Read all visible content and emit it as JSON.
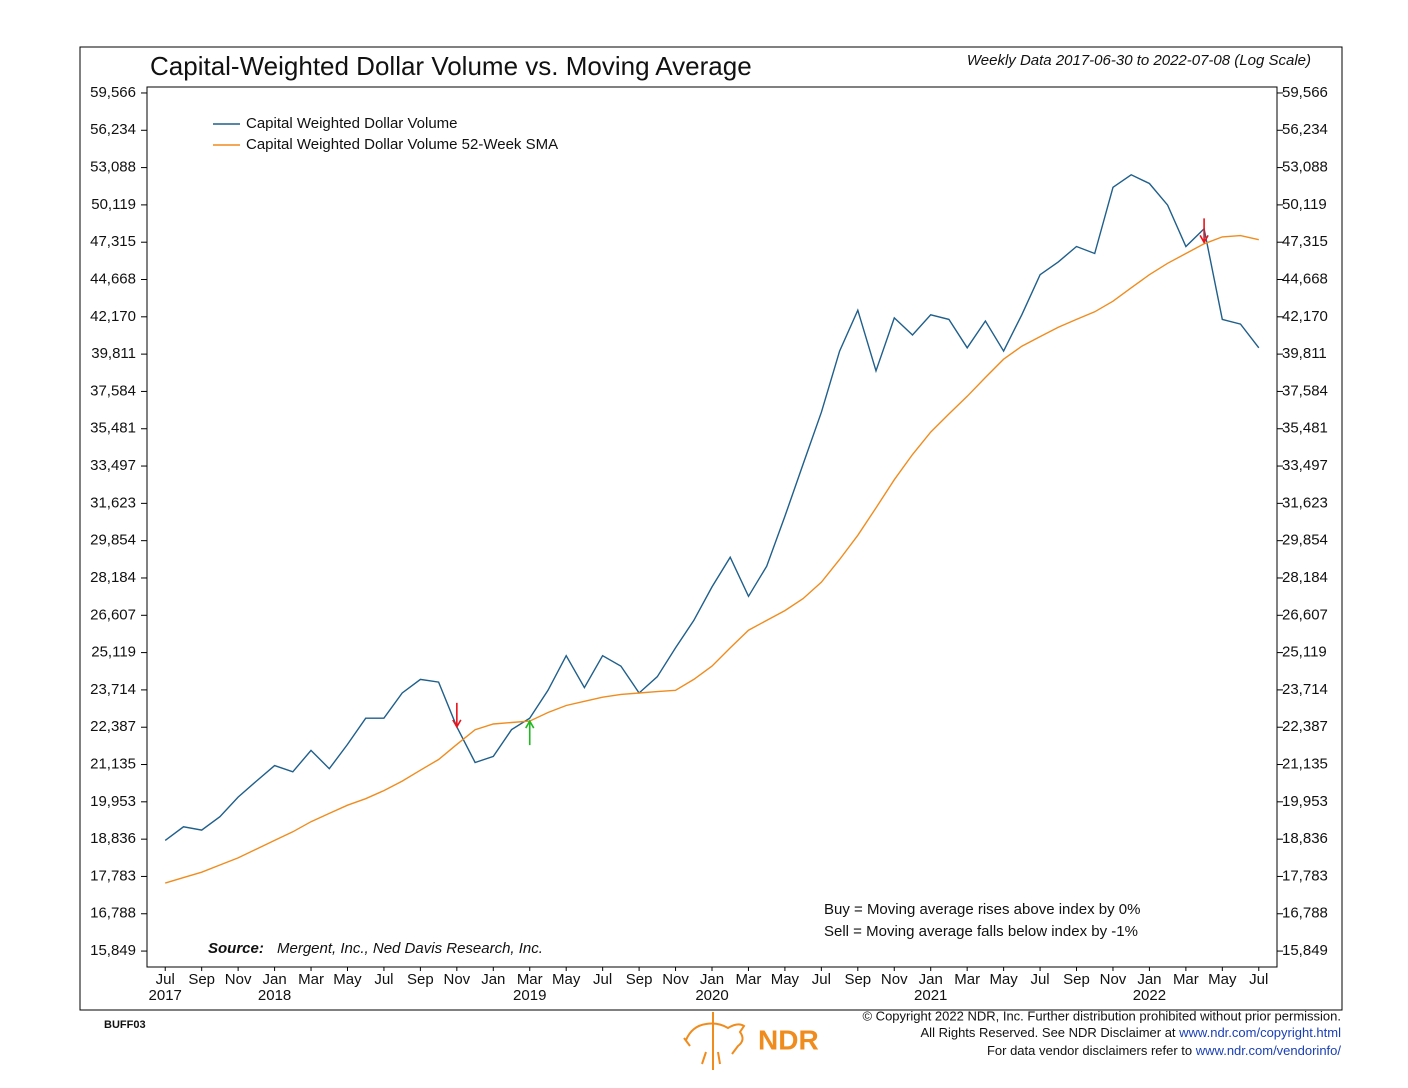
{
  "chart_data": {
    "type": "line",
    "title": "Capital-Weighted Dollar Volume vs. Moving Average",
    "subtitle": "Weekly Data 2017-06-30 to 2022-07-08 (Log Scale)",
    "log_scale": true,
    "x": [
      "2017-07",
      "2017-08",
      "2017-09",
      "2017-10",
      "2017-11",
      "2017-12",
      "2018-01",
      "2018-02",
      "2018-03",
      "2018-04",
      "2018-05",
      "2018-06",
      "2018-07",
      "2018-08",
      "2018-09",
      "2018-10",
      "2018-11",
      "2018-12",
      "2019-01",
      "2019-02",
      "2019-03",
      "2019-04",
      "2019-05",
      "2019-06",
      "2019-07",
      "2019-08",
      "2019-09",
      "2019-10",
      "2019-11",
      "2019-12",
      "2020-01",
      "2020-02",
      "2020-03",
      "2020-04",
      "2020-05",
      "2020-06",
      "2020-07",
      "2020-08",
      "2020-09",
      "2020-10",
      "2020-11",
      "2020-12",
      "2021-01",
      "2021-02",
      "2021-03",
      "2021-04",
      "2021-05",
      "2021-06",
      "2021-07",
      "2021-08",
      "2021-09",
      "2021-10",
      "2021-11",
      "2021-12",
      "2022-01",
      "2022-02",
      "2022-03",
      "2022-04",
      "2022-05",
      "2022-06",
      "2022-07"
    ],
    "series": [
      {
        "name": "Capital Weighted Dollar Volume",
        "color": "#1f5f8b",
        "values": [
          18800,
          19200,
          19100,
          19500,
          20100,
          20600,
          21100,
          20900,
          21600,
          21000,
          21800,
          22700,
          22700,
          23600,
          24100,
          24000,
          22400,
          21200,
          21400,
          22300,
          22700,
          23700,
          25000,
          23800,
          25000,
          24600,
          23600,
          24200,
          25300,
          26400,
          27800,
          29100,
          27400,
          28700,
          31000,
          33600,
          36400,
          40000,
          42600,
          38800,
          42100,
          41000,
          42300,
          42000,
          40200,
          41900,
          40000,
          42300,
          45000,
          45900,
          47000,
          46500,
          51500,
          52500,
          51800,
          50100,
          47000,
          48300,
          42000,
          41700,
          40200
        ]
      },
      {
        "name": "Capital Weighted Dollar Volume 52-Week SMA",
        "color": "#f08c1e",
        "values": [
          17600,
          17750,
          17900,
          18100,
          18300,
          18550,
          18800,
          19050,
          19350,
          19600,
          19850,
          20050,
          20300,
          20600,
          20950,
          21300,
          21800,
          22300,
          22500,
          22550,
          22600,
          22900,
          23150,
          23300,
          23450,
          23550,
          23600,
          23650,
          23700,
          24100,
          24600,
          25300,
          26000,
          26400,
          26800,
          27300,
          28000,
          29000,
          30100,
          31400,
          32800,
          34100,
          35300,
          36300,
          37300,
          38400,
          39500,
          40300,
          40900,
          41500,
          42000,
          42500,
          43200,
          44100,
          45000,
          45800,
          46500,
          47200,
          47700,
          47800,
          47500
        ]
      }
    ],
    "signals": [
      {
        "x": "2018-11",
        "value": 22400,
        "color": "#e8141c",
        "direction": "down"
      },
      {
        "x": "2019-03",
        "value": 22600,
        "color": "#22b822",
        "direction": "up"
      },
      {
        "x": "2022-04",
        "value": 47300,
        "color": "#e8141c",
        "direction": "down"
      }
    ],
    "xlim": [
      "2017-06",
      "2022-08"
    ],
    "xticks": [
      {
        "value": "2017-07",
        "label": "Jul"
      },
      {
        "value": "2017-09",
        "label": "Sep"
      },
      {
        "value": "2017-11",
        "label": "Nov"
      },
      {
        "value": "2018-01",
        "label": "Jan"
      },
      {
        "value": "2018-03",
        "label": "Mar"
      },
      {
        "value": "2018-05",
        "label": "May"
      },
      {
        "value": "2018-07",
        "label": "Jul"
      },
      {
        "value": "2018-09",
        "label": "Sep"
      },
      {
        "value": "2018-11",
        "label": "Nov"
      },
      {
        "value": "2019-01",
        "label": "Jan"
      },
      {
        "value": "2019-03",
        "label": "Mar"
      },
      {
        "value": "2019-05",
        "label": "May"
      },
      {
        "value": "2019-07",
        "label": "Jul"
      },
      {
        "value": "2019-09",
        "label": "Sep"
      },
      {
        "value": "2019-11",
        "label": "Nov"
      },
      {
        "value": "2020-01",
        "label": "Jan"
      },
      {
        "value": "2020-03",
        "label": "Mar"
      },
      {
        "value": "2020-05",
        "label": "May"
      },
      {
        "value": "2020-07",
        "label": "Jul"
      },
      {
        "value": "2020-09",
        "label": "Sep"
      },
      {
        "value": "2020-11",
        "label": "Nov"
      },
      {
        "value": "2021-01",
        "label": "Jan"
      },
      {
        "value": "2021-03",
        "label": "Mar"
      },
      {
        "value": "2021-05",
        "label": "May"
      },
      {
        "value": "2021-07",
        "label": "Jul"
      },
      {
        "value": "2021-09",
        "label": "Sep"
      },
      {
        "value": "2021-11",
        "label": "Nov"
      },
      {
        "value": "2022-01",
        "label": "Jan"
      },
      {
        "value": "2022-03",
        "label": "Mar"
      },
      {
        "value": "2022-05",
        "label": "May"
      },
      {
        "value": "2022-07",
        "label": "Jul"
      }
    ],
    "year_labels": [
      {
        "value": "2017-07",
        "label": "2017"
      },
      {
        "value": "2018-01",
        "label": "2018"
      },
      {
        "value": "2019-03",
        "label": "2019"
      },
      {
        "value": "2020-01",
        "label": "2020"
      },
      {
        "value": "2021-01",
        "label": "2021"
      },
      {
        "value": "2022-01",
        "label": "2022"
      }
    ],
    "ylim": [
      15464,
      60117
    ],
    "yticks": [
      {
        "value": 15849,
        "label": "15,849"
      },
      {
        "value": 16788,
        "label": "16,788"
      },
      {
        "value": 17783,
        "label": "17,783"
      },
      {
        "value": 18836,
        "label": "18,836"
      },
      {
        "value": 19953,
        "label": "19,953"
      },
      {
        "value": 21135,
        "label": "21,135"
      },
      {
        "value": 22387,
        "label": "22,387"
      },
      {
        "value": 23714,
        "label": "23,714"
      },
      {
        "value": 25119,
        "label": "25,119"
      },
      {
        "value": 26607,
        "label": "26,607"
      },
      {
        "value": 28184,
        "label": "28,184"
      },
      {
        "value": 29854,
        "label": "29,854"
      },
      {
        "value": 31623,
        "label": "31,623"
      },
      {
        "value": 33497,
        "label": "33,497"
      },
      {
        "value": 35481,
        "label": "35,481"
      },
      {
        "value": 37584,
        "label": "37,584"
      },
      {
        "value": 39811,
        "label": "39,811"
      },
      {
        "value": 42170,
        "label": "42,170"
      },
      {
        "value": 44668,
        "label": "44,668"
      },
      {
        "value": 47315,
        "label": "47,315"
      },
      {
        "value": 50119,
        "label": "50,119"
      },
      {
        "value": 53088,
        "label": "53,088"
      },
      {
        "value": 56234,
        "label": "56,234"
      },
      {
        "value": 59566,
        "label": "59,566"
      }
    ],
    "notes": [
      "Buy = Moving average rises above index by 0%",
      "Sell = Moving average falls below index by -1%"
    ],
    "source_label": "Source:",
    "source": "Mergent, Inc., Ned Davis Research, Inc."
  },
  "footer": {
    "code": "BUFF03",
    "copyright": "© Copyright 2022 NDR, Inc. Further distribution prohibited without prior permission.",
    "rights": "All Rights Reserved. See NDR Disclaimer at ",
    "rights_link": "www.ndr.com/copyright.html",
    "vendor": "For data vendor disclaimers refer to ",
    "vendor_link": "www.ndr.com/vendorinfo/",
    "logo": "NDR"
  }
}
